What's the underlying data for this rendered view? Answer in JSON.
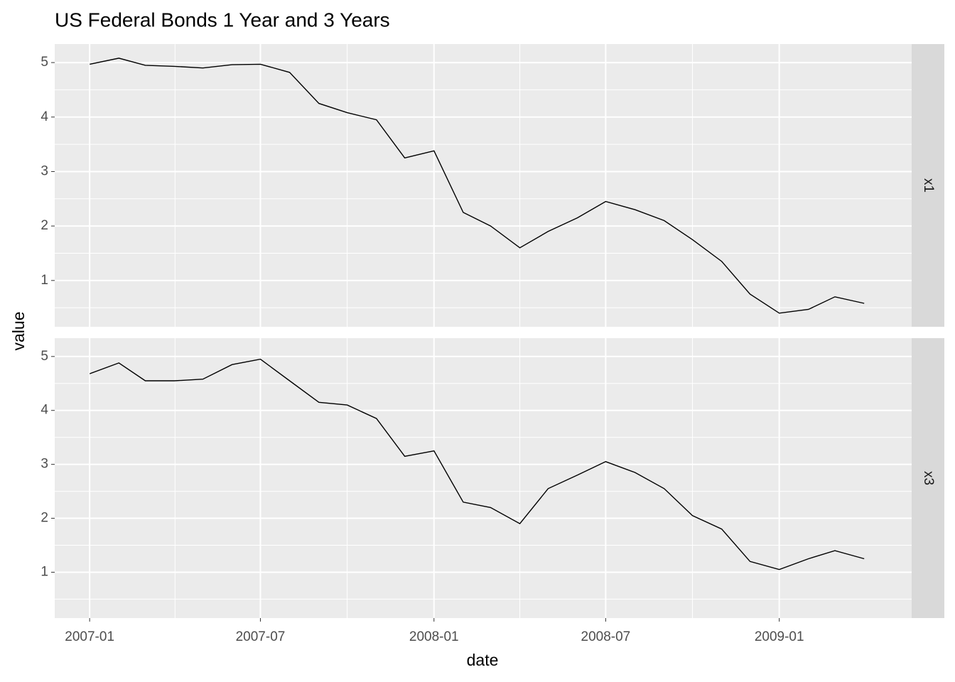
{
  "chart_data": {
    "type": "line",
    "title": "US Federal Bonds 1 Year and 3 Years",
    "x_label": "date",
    "y_label": "value",
    "facet": true,
    "grid": true,
    "x": [
      "2007-01",
      "2007-02",
      "2007-03",
      "2007-04",
      "2007-05",
      "2007-06",
      "2007-07",
      "2007-08",
      "2007-09",
      "2007-10",
      "2007-11",
      "2007-12",
      "2008-01",
      "2008-02",
      "2008-03",
      "2008-04",
      "2008-05",
      "2008-06",
      "2008-07",
      "2008-08",
      "2008-09",
      "2008-10",
      "2008-11",
      "2008-12",
      "2009-01",
      "2009-02",
      "2009-03",
      "2009-04"
    ],
    "xlim": [
      "2006-12",
      "2009-05"
    ],
    "xticks": [
      "2007-01",
      "2007-07",
      "2008-01",
      "2008-07",
      "2009-01"
    ],
    "ylim": [
      0.15,
      5.34
    ],
    "yticks": [
      1,
      2,
      3,
      4,
      5
    ],
    "series": [
      {
        "name": "x1",
        "color": "#000000",
        "values": [
          4.97,
          5.08,
          4.95,
          4.93,
          4.9,
          4.96,
          4.97,
          4.82,
          4.25,
          4.08,
          3.95,
          3.25,
          3.38,
          2.25,
          2.0,
          1.6,
          1.9,
          2.15,
          2.45,
          2.3,
          2.1,
          1.75,
          1.35,
          0.75,
          0.4,
          0.47,
          0.7,
          0.58
        ]
      },
      {
        "name": "x3",
        "color": "#000000",
        "values": [
          4.68,
          4.88,
          4.55,
          4.55,
          4.58,
          4.85,
          4.95,
          4.55,
          4.15,
          4.1,
          3.85,
          3.15,
          3.25,
          2.3,
          2.2,
          1.9,
          2.55,
          2.8,
          3.05,
          2.85,
          2.55,
          2.05,
          1.8,
          1.2,
          1.05,
          1.25,
          1.4,
          1.25
        ]
      }
    ]
  }
}
